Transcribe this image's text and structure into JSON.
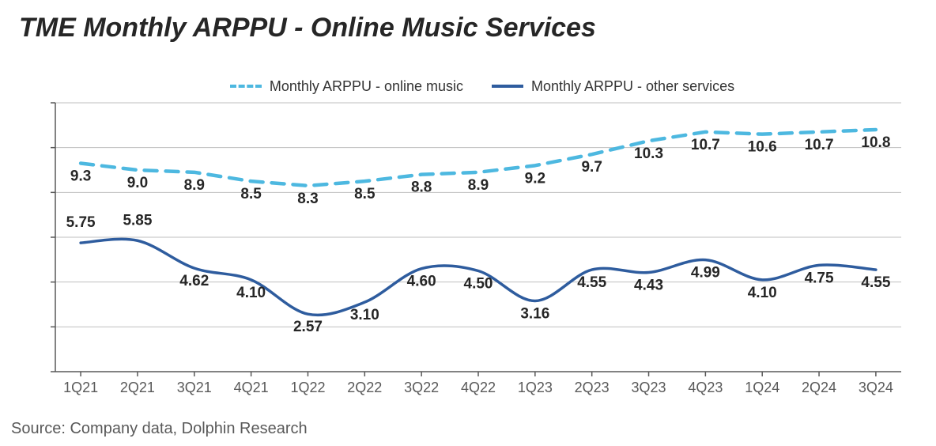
{
  "title": "TME Monthly ARPPU - Online Music Services",
  "source": "Source: Company data, Dolphin Research",
  "chart": {
    "type": "line",
    "categories": [
      "1Q21",
      "2Q21",
      "3Q21",
      "4Q21",
      "1Q22",
      "2Q22",
      "3Q22",
      "4Q22",
      "1Q23",
      "2Q23",
      "3Q23",
      "4Q23",
      "1Q24",
      "2Q24",
      "3Q24"
    ],
    "ylim": [
      0,
      12
    ],
    "ytick_step": 2,
    "yticks": [
      "0.0",
      "2.0",
      "4.0",
      "6.0",
      "8.0",
      "10.0",
      "12.0"
    ],
    "background_color": "#ffffff",
    "grid_color": "#bfbfbf",
    "axis_color": "#595959",
    "tick_fontsize": 18,
    "label_fontsize": 19,
    "title_fontsize": 34,
    "series": [
      {
        "name": "Monthly ARPPU - online music",
        "style": "dashed",
        "color": "#4db8e0",
        "line_width": 4.5,
        "dash_pattern": "16 11",
        "values": [
          9.3,
          9.0,
          8.9,
          8.5,
          8.3,
          8.5,
          8.8,
          8.9,
          9.2,
          9.7,
          10.3,
          10.7,
          10.6,
          10.7,
          10.8
        ],
        "label_offset_y": 22,
        "label_precision": 1
      },
      {
        "name": "Monthly ARPPU - other services",
        "style": "solid",
        "color": "#2e5c9e",
        "line_width": 3.5,
        "values": [
          5.75,
          5.85,
          4.62,
          4.1,
          2.57,
          3.1,
          4.6,
          4.5,
          3.16,
          4.55,
          4.43,
          4.99,
          4.1,
          4.75,
          4.55
        ],
        "label_offset_y": 22,
        "specific_offsets": {
          "0": -20,
          "1": -20
        },
        "label_precision": 2
      }
    ],
    "legend": {
      "position": "top-center",
      "fontsize": 18
    }
  }
}
